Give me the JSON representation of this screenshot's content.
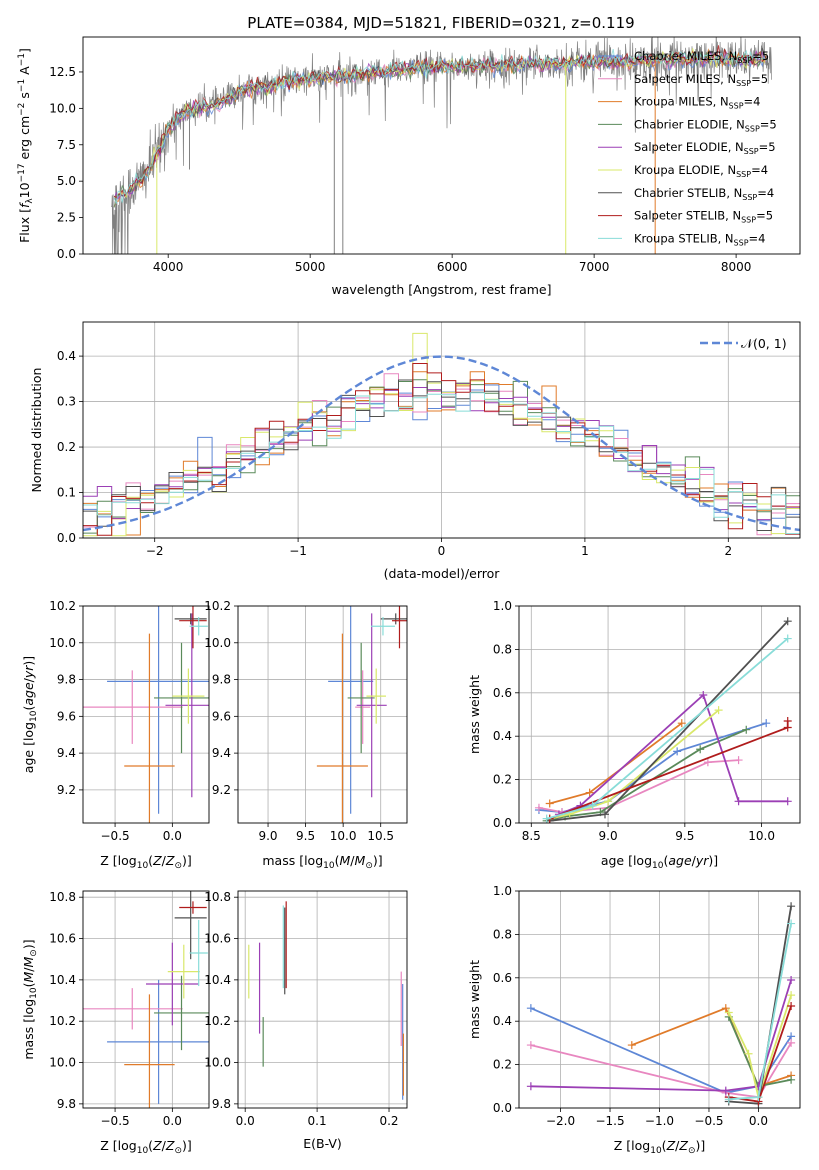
{
  "figure": {
    "title": "PLATE=0384, MJD=51821, FIBERID=0321, z=0.119"
  },
  "colors": {
    "grid": "#b0b0b0",
    "axis": "#000000",
    "spectrum": "#808080"
  },
  "models": [
    {
      "name": "Chabrier MILES, N$_{SSP}$=5",
      "label_main": "Chabrier MILES, N",
      "label_sub": "SSP",
      "label_tail": "=5",
      "color": "#5e87d6"
    },
    {
      "name": "Salpeter MILES, N$_{SSP}$=5",
      "label_main": "Salpeter MILES, N",
      "label_sub": "SSP",
      "label_tail": "=5",
      "color": "#e887c0"
    },
    {
      "name": "Kroupa MILES, N$_{SSP}$=4",
      "label_main": "Kroupa MILES, N",
      "label_sub": "SSP",
      "label_tail": "=4",
      "color": "#e07b2a"
    },
    {
      "name": "Chabrier ELODIE, N$_{SSP}$=5",
      "label_main": "Chabrier ELODIE, N",
      "label_sub": "SSP",
      "label_tail": "=5",
      "color": "#5a8a5a"
    },
    {
      "name": "Salpeter ELODIE, N$_{SSP}$=5",
      "label_main": "Salpeter ELODIE, N",
      "label_sub": "SSP",
      "label_tail": "=5",
      "color": "#9b3fb5"
    },
    {
      "name": "Kroupa ELODIE, N$_{SSP}$=4",
      "label_main": "Kroupa ELODIE, N",
      "label_sub": "SSP",
      "label_tail": "=4",
      "color": "#d9e86a"
    },
    {
      "name": "Chabrier STELIB, N$_{SSP}$=4",
      "label_main": "Chabrier STELIB, N",
      "label_sub": "SSP",
      "label_tail": "=4",
      "color": "#505050"
    },
    {
      "name": "Salpeter STELIB, N$_{SSP}$=5",
      "label_main": "Salpeter STELIB, N",
      "label_sub": "SSP",
      "label_tail": "=5",
      "color": "#b01c1c"
    },
    {
      "name": "Kroupa STELIB, N$_{SSP}$=4",
      "label_main": "Kroupa STELIB, N",
      "label_sub": "SSP",
      "label_tail": "=4",
      "color": "#88dcd8"
    }
  ],
  "chart_data": [
    {
      "id": "spectrum",
      "type": "line",
      "xlabel": "wavelength [Angstrom, rest frame]",
      "ylabel": "Flux [f$_\\lambda$10$^{-17}$ erg cm$^{-2}$ s$^{-1}$ A$^{-1}$]",
      "ylabel_main": "Flux [",
      "ylabel_f": "f",
      "ylabel_sub": "λ",
      "ylabel_10": "10",
      "ylabel_exp1": "−17",
      "ylabel_unit": " erg cm",
      "ylabel_exp2": "−2",
      "ylabel_s": " s",
      "ylabel_exp3": "−1",
      "ylabel_A": " A",
      "ylabel_exp4": "−1",
      "ylabel_close": "]",
      "xlim": [
        3400,
        8450
      ],
      "ylim": [
        0,
        14.9
      ],
      "xticks": [
        4000,
        5000,
        6000,
        7000,
        8000
      ],
      "yticks": [
        0.0,
        2.5,
        5.0,
        7.5,
        10.0,
        12.5
      ],
      "ytick_labels": [
        "0.0",
        "2.5",
        "5.0",
        "7.5",
        "10.0",
        "12.5"
      ],
      "grid": false,
      "legend": "right",
      "continuum": {
        "x": [
          3600,
          3650,
          3700,
          3750,
          3800,
          3850,
          3900,
          3950,
          4000,
          4100,
          4200,
          4300,
          4400,
          4500,
          4600,
          4700,
          4800,
          4900,
          5000,
          5200,
          5400,
          5600,
          5800,
          6000,
          6200,
          6400,
          6600,
          6800,
          7000,
          7200,
          7400,
          7600,
          7800,
          8000,
          8200
        ],
        "y": [
          3.6,
          4.0,
          4.2,
          4.6,
          5.0,
          5.6,
          6.5,
          7.4,
          8.6,
          9.6,
          10.0,
          10.2,
          10.5,
          11.2,
          11.5,
          11.4,
          11.8,
          11.9,
          12.0,
          12.2,
          12.4,
          12.6,
          12.8,
          12.9,
          12.9,
          13.0,
          13.1,
          13.1,
          13.2,
          13.2,
          13.3,
          13.4,
          13.4,
          13.3,
          13.4
        ]
      },
      "spikes": [
        {
          "x": 3920,
          "y": 0.0,
          "color": "#d9e86a"
        },
        {
          "x": 4150,
          "y": 5.8,
          "color": "#808080"
        },
        {
          "x": 5170,
          "y": 0.0,
          "color": "#808080"
        },
        {
          "x": 5230,
          "y": 0.0,
          "color": "#808080"
        },
        {
          "x": 6800,
          "y": 0.0,
          "color": "#d9e86a"
        },
        {
          "x": 7430,
          "y": 0.0,
          "color": "#e07b2a"
        }
      ]
    },
    {
      "id": "residuals",
      "type": "histogram",
      "xlabel": "(data-model)/error",
      "ylabel": "Normed distribution",
      "xlim": [
        -2.5,
        2.5
      ],
      "ylim": [
        0,
        0.475
      ],
      "xticks": [
        -2,
        -1,
        0,
        1,
        2
      ],
      "xtick_labels": [
        "−2",
        "−1",
        "0",
        "1",
        "2"
      ],
      "yticks": [
        0.0,
        0.1,
        0.2,
        0.3,
        0.4
      ],
      "ytick_labels": [
        "0.0",
        "0.1",
        "0.2",
        "0.3",
        "0.4"
      ],
      "grid": true,
      "legend": "top-right",
      "normal_label": "$\\mathcal{N}(0,1)$",
      "normal_label_text": "𝒩(0, 1)",
      "normal_color": "#5e87d6",
      "bin_width": 0.1
    },
    {
      "id": "age_vs_Z",
      "type": "errorbar",
      "xlabel": "Z [log$_{10}$(Z/Z$_\\odot$)]",
      "ylabel": "age [log$_{10}$(age/yr)]",
      "xlim": [
        -0.78,
        0.32
      ],
      "ylim": [
        9.02,
        10.2
      ],
      "xticks": [
        -0.5,
        0.0
      ],
      "xtick_labels": [
        "−0.5",
        "0.0"
      ],
      "yticks": [
        9.2,
        9.4,
        9.6,
        9.8,
        10.0,
        10.2
      ],
      "ytick_labels": [
        "9.2",
        "9.4",
        "9.6",
        "9.8",
        "10.0",
        "10.2"
      ],
      "grid": true,
      "points": [
        {
          "model": 0,
          "x": -0.12,
          "xerr": 0.45,
          "y": 9.79,
          "yerr": 0.72
        },
        {
          "model": 1,
          "x": -0.35,
          "xerr": 0.44,
          "y": 9.65,
          "yerr": 0.2
        },
        {
          "model": 2,
          "x": -0.2,
          "xerr": 0.22,
          "y": 9.33,
          "yerr": 0.72
        },
        {
          "model": 3,
          "x": 0.08,
          "xerr": 0.24,
          "y": 9.7,
          "yerr": 0.3
        },
        {
          "model": 4,
          "x": 0.17,
          "xerr": 0.23,
          "y": 9.66,
          "yerr": 0.5
        },
        {
          "model": 5,
          "x": 0.14,
          "xerr": 0.14,
          "y": 9.71,
          "yerr": 0.15
        },
        {
          "model": 6,
          "x": 0.16,
          "xerr": 0.14,
          "y": 10.13,
          "yerr": 0.03
        },
        {
          "model": 7,
          "x": 0.18,
          "xerr": 0.12,
          "y": 10.12,
          "yerr": 0.15
        },
        {
          "model": 8,
          "x": 0.23,
          "xerr": 0.08,
          "y": 10.09,
          "yerr": 0.05
        }
      ]
    },
    {
      "id": "age_vs_mass",
      "type": "errorbar",
      "xlabel": "mass [log$_{10}$(M/M$_\\odot$)]",
      "ylabel": "",
      "xlim": [
        8.6,
        10.85
      ],
      "ylim": [
        9.02,
        10.2
      ],
      "xticks": [
        9.0,
        9.5,
        10.0,
        10.5
      ],
      "xtick_labels": [
        "9.0",
        "9.5",
        "10.0",
        "10.5"
      ],
      "yticks": [
        9.2,
        9.4,
        9.6,
        9.8,
        10.0,
        10.2
      ],
      "ytick_labels": [
        "9.2",
        "9.4",
        "9.6",
        "9.8",
        "10.0",
        "10.2"
      ],
      "grid": true,
      "points": [
        {
          "model": 0,
          "x": 10.1,
          "xerr": 0.3,
          "y": 9.79,
          "yerr": 0.72
        },
        {
          "model": 1,
          "x": 10.26,
          "xerr": 0.1,
          "y": 9.65,
          "yerr": 0.2
        },
        {
          "model": 2,
          "x": 9.99,
          "xerr": 0.34,
          "y": 9.33,
          "yerr": 0.72
        },
        {
          "model": 3,
          "x": 10.24,
          "xerr": 0.18,
          "y": 9.7,
          "yerr": 0.3
        },
        {
          "model": 4,
          "x": 10.38,
          "xerr": 0.2,
          "y": 9.66,
          "yerr": 0.5
        },
        {
          "model": 5,
          "x": 10.44,
          "xerr": 0.13,
          "y": 9.71,
          "yerr": 0.15
        },
        {
          "model": 6,
          "x": 10.7,
          "xerr": 0.2,
          "y": 10.13,
          "yerr": 0.03
        },
        {
          "model": 7,
          "x": 10.75,
          "xerr": 0.1,
          "y": 10.12,
          "yerr": 0.15
        },
        {
          "model": 8,
          "x": 10.53,
          "xerr": 0.16,
          "y": 10.09,
          "yerr": 0.05
        }
      ]
    },
    {
      "id": "massweight_vs_age",
      "type": "line",
      "xlabel": "age [log$_{10}$(age/yr)]",
      "ylabel": "mass weight",
      "xlim": [
        8.42,
        10.25
      ],
      "ylim": [
        0,
        1.0
      ],
      "xticks": [
        8.5,
        9.0,
        9.5,
        10.0
      ],
      "xtick_labels": [
        "8.5",
        "9.0",
        "9.5",
        "10.0"
      ],
      "yticks": [
        0.0,
        0.2,
        0.4,
        0.6,
        0.8,
        1.0
      ],
      "ytick_labels": [
        "0.0",
        "0.2",
        "0.4",
        "0.6",
        "0.8",
        "1.0"
      ],
      "grid": true,
      "series": [
        {
          "model": 0,
          "x": [
            8.55,
            8.7,
            9.0,
            9.45,
            10.03
          ],
          "y": [
            0.06,
            0.05,
            0.1,
            0.33,
            0.46
          ]
        },
        {
          "model": 1,
          "x": [
            8.55,
            8.7,
            9.0,
            9.65,
            9.85
          ],
          "y": [
            0.07,
            0.05,
            0.07,
            0.28,
            0.29
          ]
        },
        {
          "model": 2,
          "x": [
            8.62,
            8.88,
            9.48
          ],
          "y": [
            0.09,
            0.14,
            0.46
          ]
        },
        {
          "model": 3,
          "x": [
            8.6,
            8.72,
            8.95,
            9.6,
            9.9
          ],
          "y": [
            0.01,
            0.03,
            0.05,
            0.34,
            0.43
          ]
        },
        {
          "model": 4,
          "x": [
            8.68,
            8.82,
            9.62,
            9.85,
            10.17
          ],
          "y": [
            0.04,
            0.08,
            0.59,
            0.1,
            0.1
          ]
        },
        {
          "model": 5,
          "x": [
            8.62,
            8.75,
            9.0,
            9.72
          ],
          "y": [
            0.02,
            0.04,
            0.1,
            0.52
          ]
        },
        {
          "model": 6,
          "x": [
            8.62,
            8.98,
            10.17
          ],
          "y": [
            0.01,
            0.04,
            0.93
          ]
        },
        {
          "model": 7,
          "x": [
            8.62,
            10.17,
            10.17
          ],
          "y": [
            0.02,
            0.44,
            0.47
          ]
        },
        {
          "model": 8,
          "x": [
            8.6,
            8.9,
            10.17
          ],
          "y": [
            0.02,
            0.08,
            0.85
          ]
        }
      ]
    },
    {
      "id": "mass_vs_Z",
      "type": "errorbar",
      "xlabel": "Z [log$_{10}$(Z/Z$_\\odot$)]",
      "ylabel": "mass [log$_{10}$(M/M$_\\odot$)]",
      "xlim": [
        -0.78,
        0.32
      ],
      "ylim": [
        9.78,
        10.83
      ],
      "xticks": [
        -0.5,
        0.0
      ],
      "xtick_labels": [
        "−0.5",
        "0.0"
      ],
      "yticks": [
        9.8,
        10.0,
        10.2,
        10.4,
        10.6,
        10.8
      ],
      "ytick_labels": [
        "9.8",
        "10.0",
        "10.2",
        "10.4",
        "10.6",
        "10.8"
      ],
      "grid": true,
      "points": [
        {
          "model": 0,
          "x": -0.12,
          "xerr": 0.45,
          "y": 10.1,
          "yerr": 0.3
        },
        {
          "model": 1,
          "x": -0.35,
          "xerr": 0.44,
          "y": 10.26,
          "yerr": 0.1
        },
        {
          "model": 2,
          "x": -0.2,
          "xerr": 0.22,
          "y": 9.99,
          "yerr": 0.34
        },
        {
          "model": 3,
          "x": 0.08,
          "xerr": 0.24,
          "y": 10.24,
          "yerr": 0.18
        },
        {
          "model": 4,
          "x": 0.0,
          "xerr": 0.23,
          "y": 10.38,
          "yerr": 0.2
        },
        {
          "model": 5,
          "x": 0.1,
          "xerr": 0.14,
          "y": 10.44,
          "yerr": 0.13
        },
        {
          "model": 6,
          "x": 0.16,
          "xerr": 0.14,
          "y": 10.7,
          "yerr": 0.2
        },
        {
          "model": 7,
          "x": 0.18,
          "xerr": 0.12,
          "y": 10.75,
          "yerr": 0.03
        },
        {
          "model": 8,
          "x": 0.23,
          "xerr": 0.08,
          "y": 10.53,
          "yerr": 0.16
        }
      ]
    },
    {
      "id": "mass_vs_ebv",
      "type": "errorbar",
      "xlabel": "E(B-V)",
      "ylabel": "",
      "xlim": [
        -0.01,
        0.225
      ],
      "ylim": [
        9.78,
        10.83
      ],
      "xticks": [
        0.0,
        0.1,
        0.2
      ],
      "xtick_labels": [
        "0.0",
        "0.1",
        "0.2"
      ],
      "yticks": [
        9.8,
        10.0,
        10.2,
        10.4,
        10.6,
        10.8
      ],
      "ytick_labels": [
        "9.8",
        "10.0",
        "10.2",
        "10.4",
        "10.6",
        "10.8"
      ],
      "grid": true,
      "points": [
        {
          "model": 0,
          "x": 0.219,
          "xerr": 0.0,
          "y": 10.1,
          "yerr": 0.28
        },
        {
          "model": 1,
          "x": 0.217,
          "xerr": 0.0,
          "y": 10.26,
          "yerr": 0.18
        },
        {
          "model": 2,
          "x": 0.22,
          "xerr": 0.0,
          "y": 9.99,
          "yerr": 0.15
        },
        {
          "model": 3,
          "x": 0.025,
          "xerr": 0.0,
          "y": 10.1,
          "yerr": 0.12
        },
        {
          "model": 4,
          "x": 0.02,
          "xerr": 0.0,
          "y": 10.36,
          "yerr": 0.22
        },
        {
          "model": 5,
          "x": 0.005,
          "xerr": 0.0,
          "y": 10.44,
          "yerr": 0.13
        },
        {
          "model": 6,
          "x": 0.055,
          "xerr": 0.0,
          "y": 10.54,
          "yerr": 0.21
        },
        {
          "model": 7,
          "x": 0.057,
          "xerr": 0.0,
          "y": 10.57,
          "yerr": 0.21
        },
        {
          "model": 8,
          "x": 0.053,
          "xerr": 0.0,
          "y": 10.56,
          "yerr": 0.2
        }
      ]
    },
    {
      "id": "massweight_vs_Z",
      "type": "line",
      "xlabel": "Z [log$_{10}$(Z/Z$_\\odot$)]",
      "ylabel": "mass weight",
      "xlim": [
        -2.42,
        0.42
      ],
      "ylim": [
        0,
        1.0
      ],
      "xticks": [
        -2.0,
        -1.5,
        -1.0,
        -0.5,
        0.0
      ],
      "xtick_labels": [
        "−2.0",
        "−1.5",
        "−1.0",
        "−0.5",
        "0.0"
      ],
      "yticks": [
        0.0,
        0.2,
        0.4,
        0.6,
        0.8,
        1.0
      ],
      "ytick_labels": [
        "0.0",
        "0.2",
        "0.4",
        "0.6",
        "0.8",
        "1.0"
      ],
      "grid": true,
      "series": [
        {
          "model": 0,
          "x": [
            -2.3,
            -0.33,
            0.0,
            0.33
          ],
          "y": [
            0.46,
            0.07,
            0.1,
            0.33
          ]
        },
        {
          "model": 1,
          "x": [
            -2.3,
            -0.33,
            0.0,
            0.33
          ],
          "y": [
            0.29,
            0.07,
            0.05,
            0.3
          ]
        },
        {
          "model": 2,
          "x": [
            -1.28,
            -0.33,
            0.0,
            0.33
          ],
          "y": [
            0.29,
            0.46,
            0.1,
            0.15
          ]
        },
        {
          "model": 3,
          "x": [
            -0.3,
            0.0,
            0.33
          ],
          "y": [
            0.42,
            0.1,
            0.13
          ]
        },
        {
          "model": 4,
          "x": [
            -2.3,
            -0.33,
            0.0,
            0.33
          ],
          "y": [
            0.1,
            0.08,
            0.1,
            0.59
          ]
        },
        {
          "model": 5,
          "x": [
            -0.3,
            -0.1,
            0.0,
            0.33
          ],
          "y": [
            0.44,
            0.25,
            0.05,
            0.52
          ]
        },
        {
          "model": 6,
          "x": [
            -0.3,
            0.0,
            0.33
          ],
          "y": [
            0.03,
            0.02,
            0.93
          ]
        },
        {
          "model": 7,
          "x": [
            -0.3,
            0.0,
            0.33
          ],
          "y": [
            0.05,
            0.03,
            0.47
          ]
        },
        {
          "model": 8,
          "x": [
            -0.3,
            0.0,
            0.33
          ],
          "y": [
            0.04,
            0.05,
            0.85
          ]
        }
      ]
    }
  ]
}
